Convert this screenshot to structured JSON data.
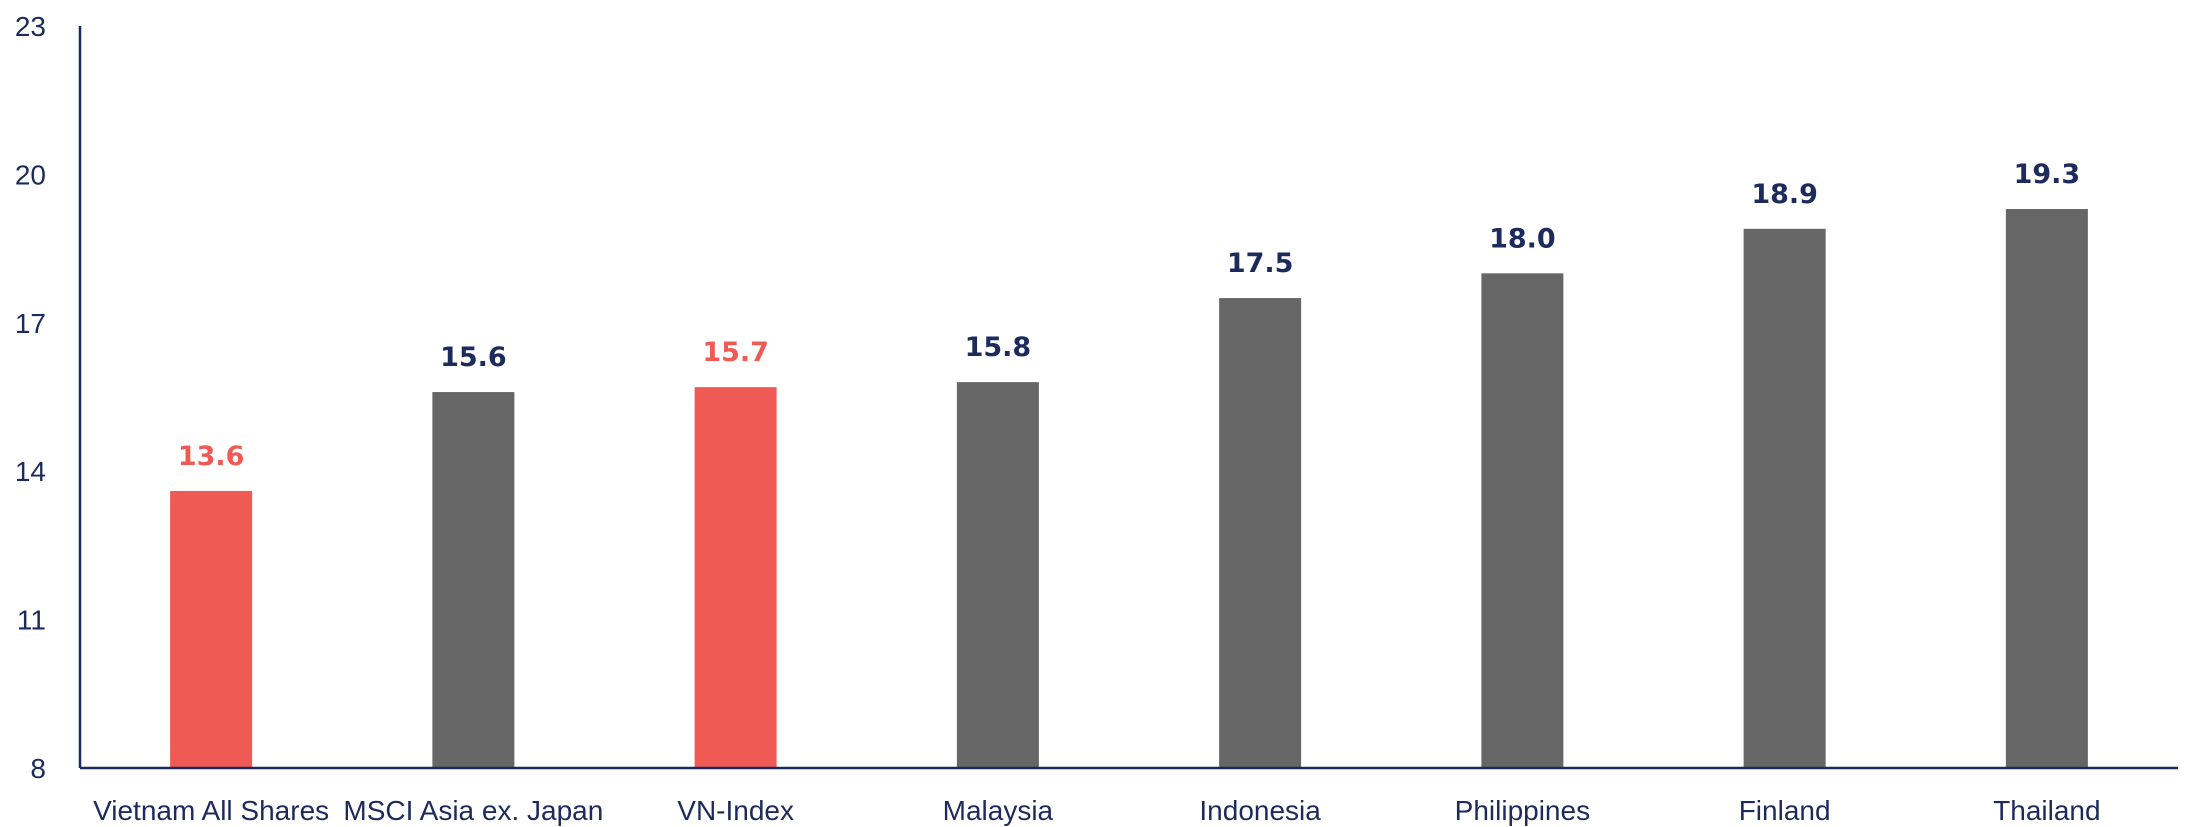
{
  "chart_data": {
    "type": "bar",
    "title": "",
    "xlabel": "",
    "ylabel": "",
    "ylim": [
      8,
      23
    ],
    "yticks": [
      8,
      11,
      14,
      17,
      20,
      23
    ],
    "ytick_labels": [
      "8",
      "11",
      "14",
      "17",
      "20",
      "23"
    ],
    "grid": false,
    "categories": [
      "Vietnam All Shares",
      "MSCI Asia ex. Japan",
      "VN-Index",
      "Malaysia",
      "Indonesia",
      "Philippines",
      "Finland",
      "Thailand"
    ],
    "values": [
      13.6,
      15.6,
      15.7,
      15.8,
      17.5,
      18.0,
      18.9,
      19.3
    ],
    "value_labels": [
      "13.6",
      "15.6",
      "15.7",
      "15.8",
      "17.5",
      "18.0",
      "18.9",
      "19.3"
    ],
    "highlighted": [
      true,
      false,
      true,
      false,
      false,
      false,
      false,
      false
    ],
    "colors": {
      "bar": "#666666",
      "highlight": "#f05a55",
      "axis": "#1d2a5c",
      "label": "#1d2a5c",
      "highlight_label": "#f05a55"
    }
  }
}
